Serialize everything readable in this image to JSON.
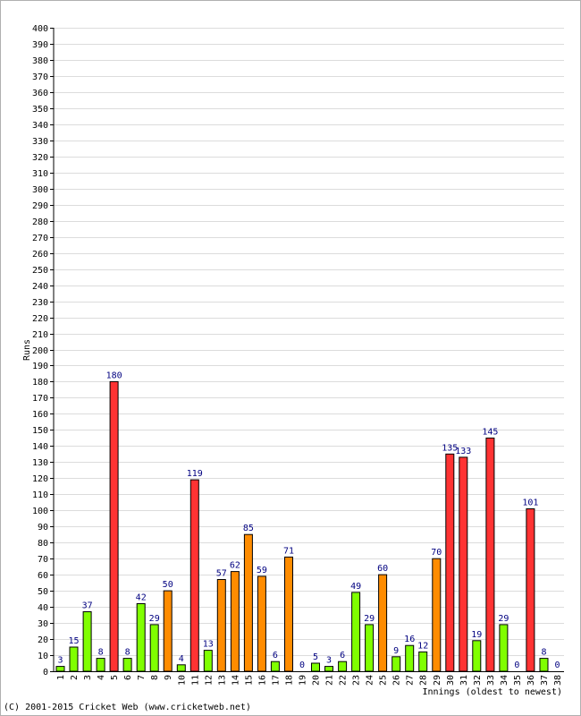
{
  "chart_data": {
    "type": "bar",
    "xlabel": "Innings (oldest to newest)",
    "ylabel": "Runs",
    "ylim": [
      0,
      400
    ],
    "ytick_step": 10,
    "grid": true,
    "categories": [
      "1",
      "2",
      "3",
      "4",
      "5",
      "6",
      "7",
      "8",
      "9",
      "10",
      "11",
      "12",
      "13",
      "14",
      "15",
      "16",
      "17",
      "18",
      "19",
      "20",
      "21",
      "22",
      "23",
      "24",
      "25",
      "26",
      "27",
      "28",
      "29",
      "30",
      "31",
      "32",
      "33",
      "34",
      "35",
      "36",
      "37",
      "38"
    ],
    "values": [
      3,
      15,
      37,
      8,
      180,
      8,
      42,
      29,
      50,
      4,
      119,
      13,
      57,
      62,
      85,
      59,
      6,
      71,
      0,
      5,
      3,
      6,
      49,
      29,
      60,
      9,
      16,
      12,
      70,
      135,
      133,
      19,
      145,
      29,
      0,
      101,
      8,
      0
    ],
    "colors": {
      "under_50": "#80ff00",
      "fifty": "#ff8c00",
      "hundred": "#ff3333",
      "edge": "#000000",
      "grid": "#dcdcdc"
    }
  },
  "footer": {
    "copyright": "(C) 2001-2015 Cricket Web (www.cricketweb.net)"
  }
}
